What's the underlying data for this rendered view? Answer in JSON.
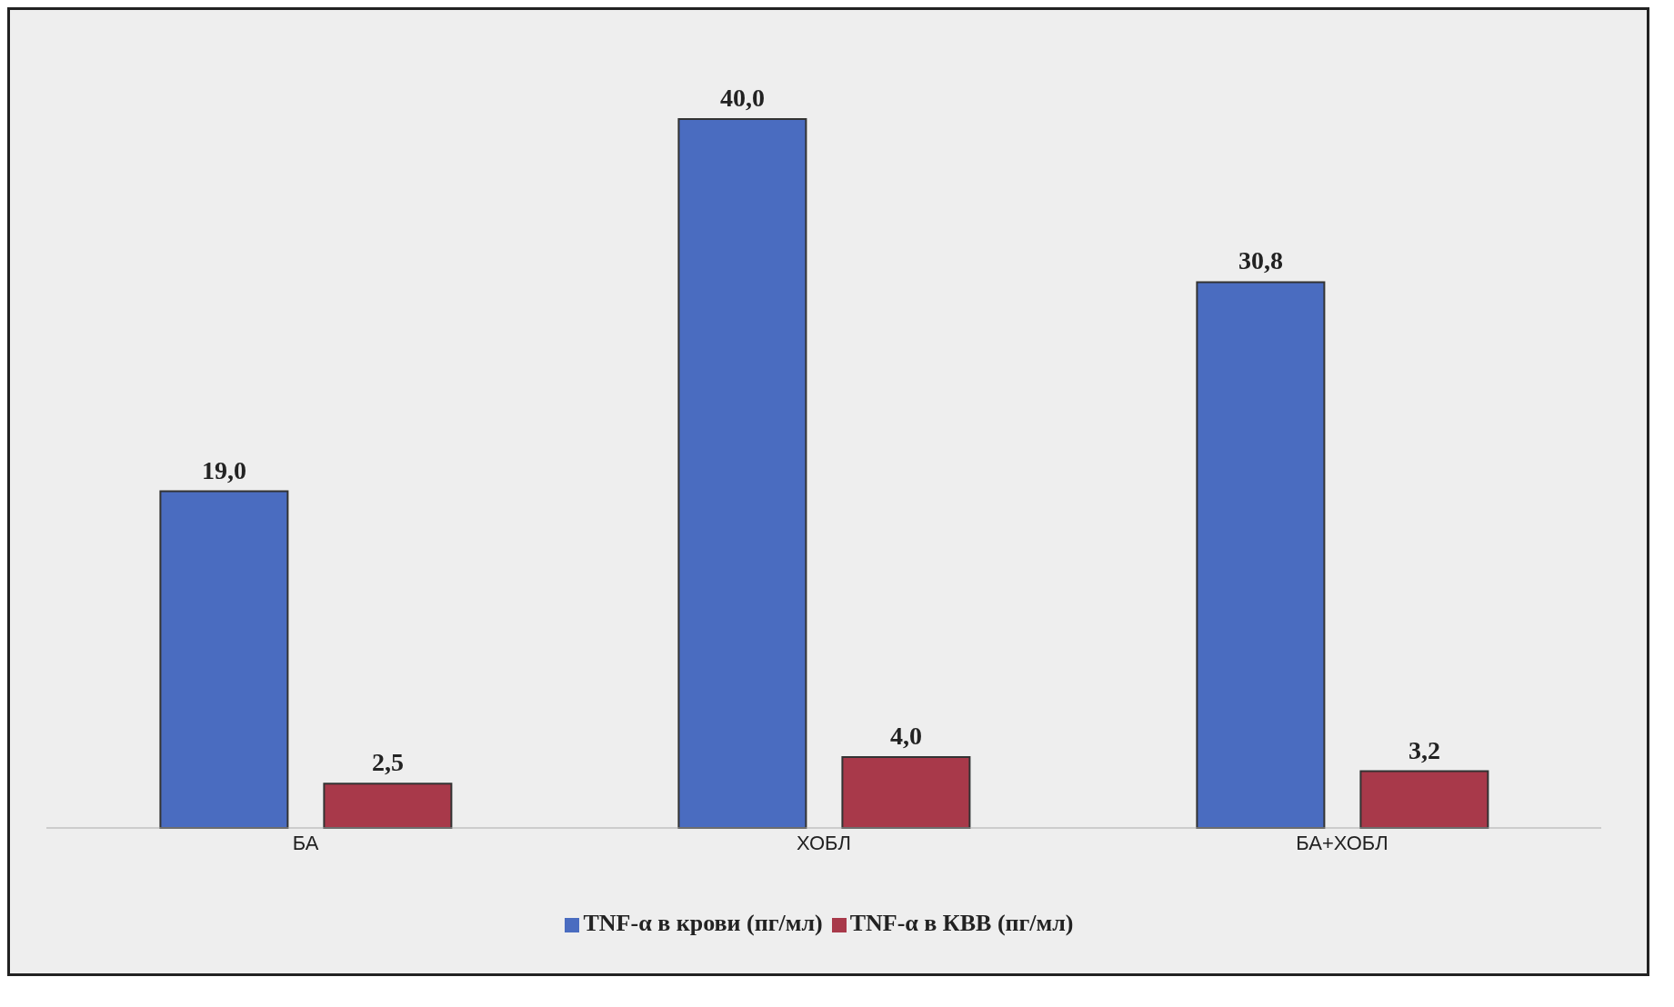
{
  "chart_data": {
    "type": "bar",
    "categories": [
      "БА",
      "ХОБЛ",
      "БА+ХОБЛ"
    ],
    "series": [
      {
        "name": "TNF-α в крови (пг/мл)",
        "color": "#4a6cc0",
        "values": [
          19.0,
          40.0,
          30.8
        ],
        "value_labels": [
          "19,0",
          "40,0",
          "30,8"
        ]
      },
      {
        "name": "TNF-α в КВВ (пг/мл)",
        "color": "#a8394a",
        "values": [
          2.5,
          4.0,
          3.2
        ],
        "value_labels": [
          "2,5",
          "4,0",
          "3,2"
        ]
      }
    ],
    "legend": "bottom"
  }
}
